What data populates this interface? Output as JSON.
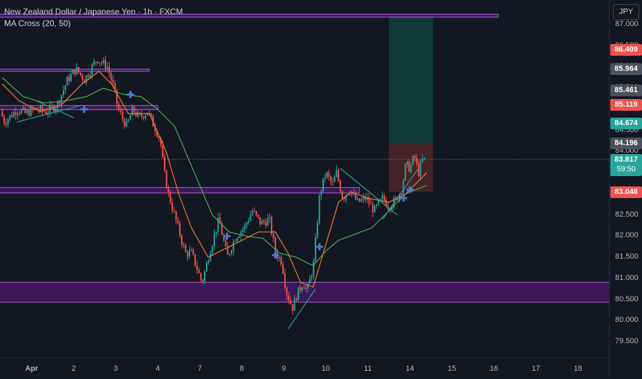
{
  "header": {
    "symbol_title": "New Zealand Dollar / Japanese Yen · 1h · FXCM",
    "indicator": "MA Cross (20, 50)"
  },
  "currency_button": "JPY",
  "colors": {
    "background": "#131722",
    "up": "#26a69a",
    "down": "#ef5350",
    "ma_fast": "#f57c2a",
    "ma_slow": "#4caf50",
    "zone_fill": "#6a1b9a",
    "zone_border": "#b05fd6",
    "cross_marker": "#4b7bd8",
    "trendline": "#26a69a",
    "target_zone": "#0f3c3a",
    "stop_zone": "#4a2428"
  },
  "price_axis": {
    "ticks": [
      "87.000",
      "86.500",
      "86.000",
      "85.500",
      "85.000",
      "84.500",
      "84.000",
      "83.500",
      "83.000",
      "82.500",
      "82.000",
      "81.500",
      "81.000",
      "80.500",
      "80.000",
      "79.500"
    ],
    "tick_values": [
      87.0,
      86.5,
      86.0,
      85.5,
      85.0,
      84.5,
      84.0,
      83.5,
      83.0,
      82.5,
      82.0,
      81.5,
      81.0,
      80.5,
      80.0,
      79.5
    ],
    "tags": [
      {
        "label": "86.409",
        "value": 86.409,
        "color": "#ef5350"
      },
      {
        "label": "85.964",
        "value": 85.964,
        "color": "#4c525e"
      },
      {
        "label": "85.461",
        "value": 85.461,
        "color": "#4c525e"
      },
      {
        "label": "85.119",
        "value": 85.119,
        "color": "#ef5350"
      },
      {
        "label": "84.674",
        "value": 84.674,
        "color": "#26a69a"
      },
      {
        "label": "84.196",
        "value": 84.196,
        "color": "#4c525e"
      },
      {
        "label": "83.048",
        "value": 83.048,
        "color": "#ef5350"
      }
    ],
    "current_price": {
      "label": "83.817",
      "countdown": "59:50",
      "value": 83.817,
      "color": "#26a69a"
    }
  },
  "time_axis": {
    "ticks": [
      {
        "label": "Apr",
        "session": 0
      },
      {
        "label": "2",
        "session": 1
      },
      {
        "label": "3",
        "session": 2
      },
      {
        "label": "4",
        "session": 3
      },
      {
        "label": "7",
        "session": 4
      },
      {
        "label": "8",
        "session": 5
      },
      {
        "label": "9",
        "session": 6
      },
      {
        "label": "10",
        "session": 7
      },
      {
        "label": "11",
        "session": 8
      },
      {
        "label": "14",
        "session": 9
      },
      {
        "label": "15",
        "session": 10
      },
      {
        "label": "16",
        "session": 11
      },
      {
        "label": "17",
        "session": 12
      },
      {
        "label": "18",
        "session": 13
      }
    ]
  },
  "chart_data": {
    "type": "candlestick",
    "timeframe": "1h",
    "overlays": [
      "MA 20",
      "MA 50"
    ],
    "path_points": [
      [
        -0.7,
        84.95
      ],
      [
        -0.6,
        84.7
      ],
      [
        -0.3,
        85.0
      ],
      [
        -0.1,
        84.9
      ],
      [
        0.1,
        85.0
      ],
      [
        0.4,
        84.95
      ],
      [
        0.65,
        85.1
      ],
      [
        0.9,
        85.7
      ],
      [
        1.1,
        85.95
      ],
      [
        1.3,
        85.7
      ],
      [
        1.6,
        86.2
      ],
      [
        1.85,
        86.0
      ],
      [
        2.0,
        85.5
      ],
      [
        2.1,
        85.0
      ],
      [
        2.3,
        84.6
      ],
      [
        2.45,
        85.0
      ],
      [
        2.6,
        84.8
      ],
      [
        2.8,
        84.95
      ],
      [
        3.1,
        84.3
      ],
      [
        3.2,
        83.5
      ],
      [
        3.3,
        83.0
      ],
      [
        3.5,
        82.3
      ],
      [
        3.7,
        81.6
      ],
      [
        3.85,
        81.6
      ],
      [
        4.1,
        80.9
      ],
      [
        4.3,
        81.7
      ],
      [
        4.5,
        82.4
      ],
      [
        4.7,
        81.5
      ],
      [
        4.9,
        82.0
      ],
      [
        5.1,
        82.2
      ],
      [
        5.3,
        82.6
      ],
      [
        5.5,
        82.3
      ],
      [
        5.7,
        82.4
      ],
      [
        5.85,
        81.6
      ],
      [
        6.0,
        81.4
      ],
      [
        6.1,
        80.7
      ],
      [
        6.25,
        80.3
      ],
      [
        6.35,
        80.6
      ],
      [
        6.5,
        80.9
      ],
      [
        6.6,
        80.7
      ],
      [
        6.75,
        81.3
      ],
      [
        6.9,
        83.0
      ],
      [
        7.05,
        83.5
      ],
      [
        7.2,
        83.2
      ],
      [
        7.3,
        83.5
      ],
      [
        7.45,
        82.9
      ],
      [
        7.6,
        83.1
      ],
      [
        7.8,
        82.8
      ],
      [
        8.0,
        82.9
      ],
      [
        8.2,
        82.6
      ],
      [
        8.4,
        82.9
      ],
      [
        8.55,
        82.7
      ],
      [
        8.7,
        82.85
      ],
      [
        8.85,
        83.1
      ],
      [
        8.95,
        83.7
      ],
      [
        9.05,
        83.6
      ],
      [
        9.15,
        83.9
      ],
      [
        9.25,
        83.5
      ],
      [
        9.35,
        83.8
      ]
    ],
    "indicators": {
      "ma_fast_points": [
        [
          -0.7,
          85.6
        ],
        [
          -0.3,
          85.2
        ],
        [
          0.2,
          84.95
        ],
        [
          0.7,
          85.1
        ],
        [
          1.2,
          85.6
        ],
        [
          1.6,
          85.9
        ],
        [
          1.9,
          85.6
        ],
        [
          2.3,
          84.9
        ],
        [
          2.8,
          84.9
        ],
        [
          3.2,
          84.0
        ],
        [
          3.5,
          83.0
        ],
        [
          3.8,
          82.2
        ],
        [
          4.2,
          81.5
        ],
        [
          4.6,
          81.7
        ],
        [
          5.0,
          81.9
        ],
        [
          5.4,
          82.1
        ],
        [
          5.8,
          82.1
        ],
        [
          6.1,
          81.6
        ],
        [
          6.4,
          80.9
        ],
        [
          6.7,
          80.8
        ],
        [
          7.0,
          81.8
        ],
        [
          7.3,
          82.8
        ],
        [
          7.6,
          83.05
        ],
        [
          8.0,
          82.9
        ],
        [
          8.5,
          82.8
        ],
        [
          8.9,
          83.0
        ],
        [
          9.4,
          83.5
        ]
      ],
      "ma_slow_points": [
        [
          -0.7,
          85.75
        ],
        [
          -0.2,
          85.3
        ],
        [
          0.3,
          85.15
        ],
        [
          0.8,
          85.2
        ],
        [
          1.3,
          85.3
        ],
        [
          1.7,
          85.5
        ],
        [
          2.2,
          85.35
        ],
        [
          2.6,
          85.3
        ],
        [
          3.0,
          85.0
        ],
        [
          3.4,
          84.6
        ],
        [
          3.7,
          83.9
        ],
        [
          4.0,
          83.2
        ],
        [
          4.3,
          82.5
        ],
        [
          4.7,
          82.1
        ],
        [
          5.1,
          82.0
        ],
        [
          5.5,
          81.95
        ],
        [
          5.9,
          81.6
        ],
        [
          6.3,
          81.5
        ],
        [
          6.7,
          81.3
        ],
        [
          7.0,
          81.65
        ],
        [
          7.3,
          81.9
        ],
        [
          7.7,
          82.05
        ],
        [
          8.1,
          82.2
        ],
        [
          8.5,
          82.6
        ],
        [
          8.9,
          83.0
        ],
        [
          9.4,
          83.2
        ]
      ],
      "cross_markers": [
        [
          1.25,
          85.0
        ],
        [
          2.35,
          85.35
        ],
        [
          4.65,
          82.0
        ],
        [
          5.8,
          81.55
        ],
        [
          6.85,
          81.75
        ],
        [
          8.85,
          82.9
        ],
        [
          9.0,
          83.1
        ]
      ]
    },
    "zones": [
      {
        "from": -0.8,
        "to": 11.1,
        "high": 87.25,
        "low": 87.18
      },
      {
        "from": -0.8,
        "to": 2.8,
        "high": 85.95,
        "low": 85.9
      },
      {
        "from": -0.8,
        "to": 3.0,
        "high": 85.09,
        "low": 84.99
      },
      {
        "from": -0.8,
        "to": 7.8,
        "high": 83.15,
        "low": 83.02
      },
      {
        "from": -0.8,
        "to": 13.9,
        "high": 80.91,
        "low": 80.44
      }
    ],
    "trade_zone": {
      "from": 8.5,
      "to": 9.55,
      "entry": 84.196,
      "target": 87.2,
      "stop": 83.048
    },
    "xlabel": "",
    "ylabel": ""
  }
}
